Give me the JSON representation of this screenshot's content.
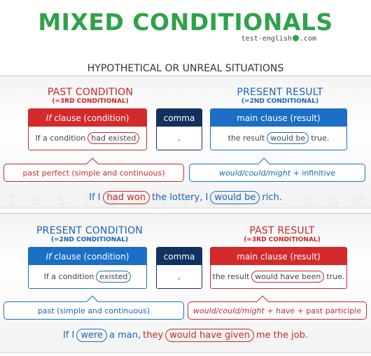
{
  "title": "MIXED CONDITIONALS",
  "site": {
    "before": "test-english",
    "after": ".com"
  },
  "subtitle": "HYPOTHETICAL OR UNREAL SITUATIONS",
  "watermark": [
    "t",
    "e",
    "s",
    "t",
    "e",
    "n",
    "g",
    "l",
    "i",
    "s",
    "h",
    ".",
    "c",
    "o",
    "m"
  ],
  "section1": {
    "left_heading": "PAST CONDITION",
    "left_sub": "(=3RD CONDITIONAL)",
    "right_heading": "PRESENT RESULT",
    "right_sub": "(=2ND CONDITIONAL)",
    "if_header_italic": "If",
    "if_header_rest": "clause (condition)",
    "if_body_pre": "If a condition",
    "if_body_pill": "had existed",
    "comma_header": "comma",
    "comma_body": ",",
    "main_header": "main clause (result)",
    "main_body_pre": "the result",
    "main_body_pill": "would be",
    "main_body_post": "true.",
    "note_left": "past perfect (simple and continuous)",
    "note_right_italic": "would/could/might",
    "note_right_rest": "+ infinitive",
    "example": {
      "w1": "If I",
      "p1": "had won",
      "w2": "the lottery, I",
      "p2": "would be",
      "w3": "rich."
    }
  },
  "section2": {
    "left_heading": "PRESENT CONDITION",
    "left_sub": "(=2ND CONDITIONAL)",
    "right_heading": "PAST RESULT",
    "right_sub": "(=3RD CONDITIONAL)",
    "if_header_italic": "If",
    "if_header_rest": "clause (condition)",
    "if_body_pre": "If a condition",
    "if_body_pill": "existed",
    "comma_header": "comma",
    "comma_body": ",",
    "main_header": "main clause (result)",
    "main_body_pre": "the result",
    "main_body_pill": "would have been",
    "main_body_post": "true.",
    "note_left": "past (simple and continuous)",
    "note_right_italic": "would/could/might",
    "note_right_rest": "+ have + past participle",
    "example": {
      "w1": "If I",
      "p1": "were",
      "w2": "a man,",
      "w2b": "they",
      "p2": "would have given",
      "w3": "me the job."
    }
  },
  "colors": {
    "green": "#2fa24a",
    "red": "#d42a2c",
    "blue": "#1b6fc7",
    "navy": "#12315f"
  }
}
